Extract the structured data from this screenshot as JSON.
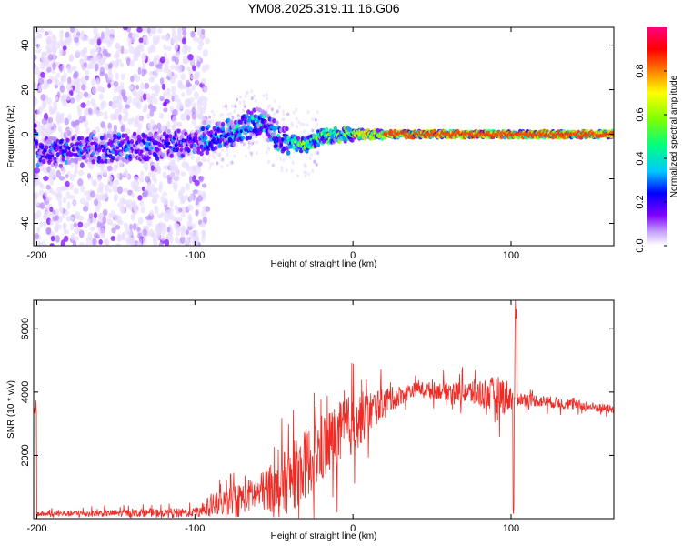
{
  "chart_data": [
    {
      "type": "heatmap",
      "title": "YM08.2025.319.11.16.G06",
      "xlabel": "Height of straight line (km)",
      "ylabel": "Frequency (Hz)",
      "xlim": [
        -202,
        165
      ],
      "ylim": [
        -50,
        48
      ],
      "xticks": [
        -200,
        -100,
        0,
        100
      ],
      "yticks": [
        -40,
        -20,
        0,
        20,
        40
      ],
      "colorbar": {
        "label": "Normalized spectral amplitude",
        "range": [
          0,
          1
        ],
        "ticks": [
          "0.0",
          "0.2",
          "0.4",
          "0.6",
          "0.8"
        ],
        "colormap": [
          "#ffffff",
          "#8000ff",
          "#0000ff",
          "#00c8ff",
          "#00ff80",
          "#80ff00",
          "#ffff00",
          "#ff8000",
          "#ff0000",
          "#ff0080"
        ]
      },
      "ridge": [
        {
          "x": -200,
          "f": -8
        },
        {
          "x": -150,
          "f": -6
        },
        {
          "x": -100,
          "f": -4
        },
        {
          "x": -80,
          "f": 0
        },
        {
          "x": -60,
          "f": 6
        },
        {
          "x": -45,
          "f": -2
        },
        {
          "x": -30,
          "f": -5
        },
        {
          "x": -20,
          "f": -1
        },
        {
          "x": 0,
          "f": 0
        },
        {
          "x": 20,
          "f": 0
        },
        {
          "x": 95,
          "f": 0
        },
        {
          "x": 165,
          "f": 0
        }
      ]
    },
    {
      "type": "line",
      "xlabel": "Height of straight line (km)",
      "ylabel": "SNR (10 * v/v)",
      "xlim": [
        -202,
        165
      ],
      "ylim": [
        0,
        6900
      ],
      "xticks": [
        -200,
        -100,
        0,
        100
      ],
      "yticks": [
        2000,
        4000,
        6000
      ],
      "color": "#ee2b24",
      "envelope": [
        {
          "x": -200,
          "base": 150,
          "amp": 120
        },
        {
          "x": -100,
          "base": 200,
          "amp": 200
        },
        {
          "x": -90,
          "base": 400,
          "amp": 500
        },
        {
          "x": -60,
          "base": 800,
          "amp": 800
        },
        {
          "x": -40,
          "base": 1200,
          "amp": 1500
        },
        {
          "x": -20,
          "base": 2200,
          "amp": 1600
        },
        {
          "x": 0,
          "base": 3000,
          "amp": 1400
        },
        {
          "x": 20,
          "base": 3700,
          "amp": 600
        },
        {
          "x": 40,
          "base": 4100,
          "amp": 300
        },
        {
          "x": 70,
          "base": 4000,
          "amp": 500
        },
        {
          "x": 95,
          "base": 3900,
          "amp": 900
        },
        {
          "x": 105,
          "base": 3800,
          "amp": 300
        },
        {
          "x": 165,
          "base": 3450,
          "amp": 200
        }
      ],
      "peak": {
        "x": 103,
        "value": 6900
      }
    }
  ]
}
